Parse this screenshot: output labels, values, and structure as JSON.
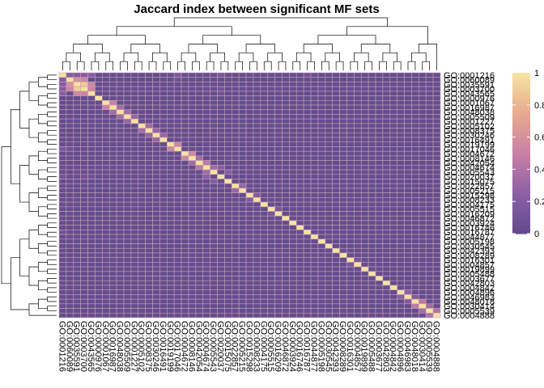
{
  "chart_data": {
    "type": "heatmap",
    "title": "Jaccard index between significant MF sets",
    "xlabel": "",
    "ylabel": "",
    "n": 53,
    "row_labels": [
      "GO:0001216",
      "GO:0060089",
      "GO:0035591",
      "GO:0003700",
      "GO:0043565",
      "GO:0000976",
      "GO:0001067",
      "GO:0016987",
      "GO:0048038",
      "GO:0005509",
      "GO:0001227",
      "GO:0005102",
      "GO:0008375",
      "GO:0030246",
      "GO:0016491",
      "GO:0019199",
      "GO:0017046",
      "GO:0004672",
      "GO:0008146",
      "GO:0042054",
      "GO:0004674",
      "GO:0005543",
      "GO:0020037",
      "GO:0015075",
      "GO:0022857",
      "GO:0005215",
      "GO:0015298",
      "GO:0008233",
      "GO:0004175",
      "GO:0005515",
      "GO:0016209",
      "GO:0046872",
      "GO:0003924",
      "GO:0016746",
      "GO:0016787",
      "GO:0044877",
      "GO:0005198",
      "GO:0030545",
      "GO:0042393",
      "GO:0008289",
      "GO:0016301",
      "GO:0004857",
      "GO:0019899",
      "GO:0005488",
      "GO:0003677",
      "GO:0042803",
      "GO:0004842",
      "GO:0004896",
      "GO:0046983",
      "GO:0048018",
      "GO:0030414",
      "GO:0005539",
      "GO:0004888"
    ],
    "col_labels": [
      "GO:0001216",
      "GO:0060089",
      "GO:0035591",
      "GO:0003700",
      "GO:0043565",
      "GO:0000976",
      "GO:0001067",
      "GO:0016987",
      "GO:0048038",
      "GO:0005509",
      "GO:0001227",
      "GO:0005102",
      "GO:0008375",
      "GO:0030246",
      "GO:0016491",
      "GO:0019199",
      "GO:0017046",
      "GO:0004672",
      "GO:0008146",
      "GO:0042054",
      "GO:0004674",
      "GO:0005543",
      "GO:0020037",
      "GO:0015075",
      "GO:0022857",
      "GO:0005215",
      "GO:0015298",
      "GO:0008233",
      "GO:0004175",
      "GO:0005515",
      "GO:0016209",
      "GO:0046872",
      "GO:0003924",
      "GO:0016746",
      "GO:0016787",
      "GO:0044877",
      "GO:0005198",
      "GO:0030545",
      "GO:0042393",
      "GO:0008289",
      "GO:0016301",
      "GO:0004857",
      "GO:0019899",
      "GO:0005488",
      "GO:0003677",
      "GO:0042803",
      "GO:0004842",
      "GO:0004896",
      "GO:0046983",
      "GO:0048018",
      "GO:0030414",
      "GO:0005539",
      "GO:0004888"
    ],
    "diagonal": 1,
    "background": 0.03,
    "off_diagonal_pairs": [
      [
        1,
        2,
        0.22
      ],
      [
        1,
        3,
        0.22
      ],
      [
        1,
        4,
        0.22
      ],
      [
        1,
        5,
        0.22
      ],
      [
        2,
        3,
        0.62
      ],
      [
        2,
        4,
        0.55
      ],
      [
        3,
        4,
        0.9
      ],
      [
        4,
        5,
        0.55
      ],
      [
        3,
        5,
        0.55
      ],
      [
        7,
        8,
        0.5
      ],
      [
        8,
        9,
        0.35
      ],
      [
        9,
        10,
        0.35
      ],
      [
        10,
        11,
        0.3
      ],
      [
        12,
        13,
        0.35
      ],
      [
        13,
        14,
        0.3
      ],
      [
        14,
        15,
        0.3
      ],
      [
        16,
        17,
        0.55
      ],
      [
        18,
        19,
        0.55
      ],
      [
        19,
        20,
        0.35
      ],
      [
        20,
        21,
        0.45
      ],
      [
        21,
        22,
        0.35
      ],
      [
        21,
        23,
        0.25
      ],
      [
        25,
        26,
        0.3
      ],
      [
        27,
        28,
        0.2
      ],
      [
        30,
        31,
        0.15
      ],
      [
        41,
        42,
        0.15
      ],
      [
        48,
        49,
        0.25
      ],
      [
        49,
        50,
        0.2
      ],
      [
        50,
        51,
        0.45
      ],
      [
        51,
        52,
        0.35
      ],
      [
        52,
        53,
        0.4
      ],
      [
        1,
        17,
        0.15
      ],
      [
        1,
        23,
        0.12
      ],
      [
        4,
        23,
        0.1
      ],
      [
        2,
        17,
        0.08
      ],
      [
        5,
        23,
        0.1
      ],
      [
        22,
        24,
        0.2
      ],
      [
        1,
        35,
        0.1
      ]
    ],
    "colorscale": {
      "name": "plasma-like (alpha)",
      "stops": [
        "#5f4a8b",
        "#8b5fa5",
        "#c77fa6",
        "#e7a98f",
        "#f6e3a1"
      ],
      "range": [
        0,
        1
      ]
    },
    "legend": {
      "position": "right",
      "ticks": [
        "0",
        "0.2",
        "0.4",
        "0.6",
        "0.8",
        "1"
      ]
    },
    "grid_color": "#c8a0b4",
    "row_dendrogram": "left",
    "col_dendrogram": "top"
  }
}
